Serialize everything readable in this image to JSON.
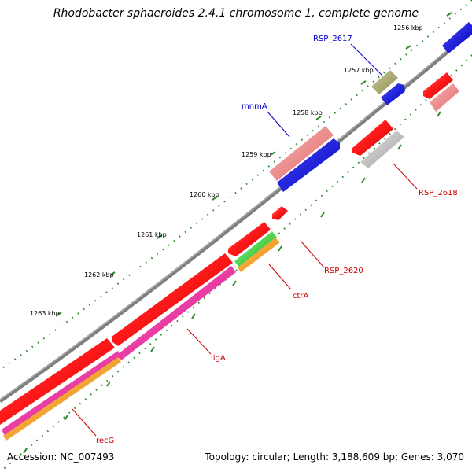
{
  "title": "Rhodobacter sphaeroides 2.4.1 chromosome 1, complete genome",
  "footer": {
    "accession": "Accession: NC_007493",
    "topology": "Topology: circular; Length: 3,188,609 bp; Genes: 3,070"
  },
  "colors": {
    "backbone": "#7f7f7f",
    "tick": "#2e8b2e",
    "label_blue": "#0000cc",
    "label_red": "#cc0000"
  },
  "scale": {
    "ticks": [
      "1256 kbp",
      "1257 kbp",
      "1258 kbp",
      "1259 kbp",
      "1260 kbp",
      "1261 kbp",
      "1262 kbp",
      "1263 kbp"
    ]
  },
  "gene_labels": [
    {
      "name": "RSP_2617",
      "color": "#0000cc"
    },
    {
      "name": "mnmA",
      "color": "#0000cc"
    },
    {
      "name": "RSP_2618",
      "color": "#cc0000"
    },
    {
      "name": "RSP_2620",
      "color": "#cc0000"
    },
    {
      "name": "ctrA",
      "color": "#cc0000"
    },
    {
      "name": "ligA",
      "color": "#cc0000"
    },
    {
      "name": "recG",
      "color": "#cc0000"
    }
  ]
}
